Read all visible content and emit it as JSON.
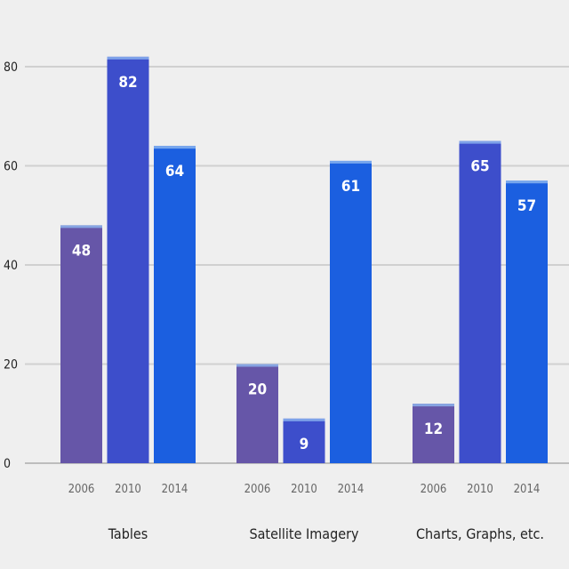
{
  "chart_data": {
    "type": "bar",
    "title": "",
    "xlabel": "",
    "ylabel": "",
    "ylim": [
      0,
      80
    ],
    "yticks": [
      0,
      20,
      40,
      60,
      80
    ],
    "grid": true,
    "legend": "none",
    "years": [
      "2006",
      "2010",
      "2014"
    ],
    "categories": [
      "Tables",
      "Satellite Imagery",
      "Charts, Graphs, etc."
    ],
    "series": [
      {
        "year": "2006",
        "color": "#6656a8",
        "values": [
          48,
          20,
          12
        ]
      },
      {
        "year": "2010",
        "color": "#3d4ecb",
        "values": [
          82,
          9,
          65
        ]
      },
      {
        "year": "2014",
        "color": "#1b5fe0",
        "values": [
          64,
          61,
          57
        ]
      }
    ]
  }
}
